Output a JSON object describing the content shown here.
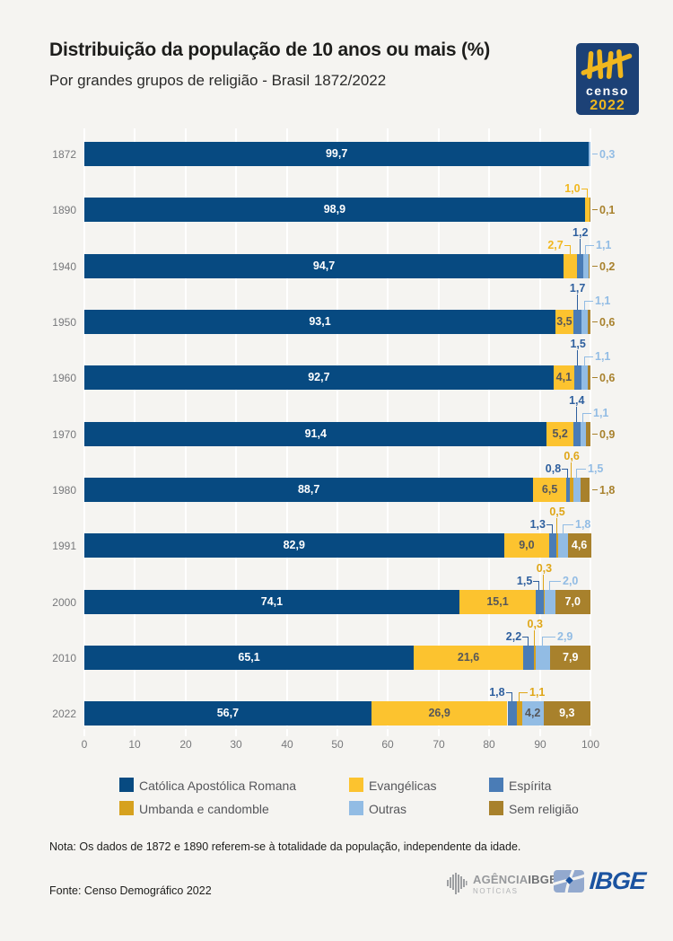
{
  "header": {
    "title": "Distribuição da população de 10 anos ou mais (%)",
    "subtitle": "Por grandes grupos de religião  - Brasil 1872/2022",
    "censo_logo": {
      "line1": "censo",
      "line2": "2022"
    }
  },
  "chart_data": {
    "type": "bar",
    "stacked": true,
    "orientation": "horizontal",
    "unit": "%",
    "decimal_separator": ",",
    "categories": [
      "1872",
      "1890",
      "1940",
      "1950",
      "1960",
      "1970",
      "1980",
      "1991",
      "2000",
      "2010",
      "2022"
    ],
    "series": [
      {
        "name": "Católica Apostólica Romana",
        "color": "#074a81",
        "values": [
          99.7,
          98.9,
          94.7,
          93.1,
          92.7,
          91.4,
          88.7,
          82.9,
          74.1,
          65.1,
          56.7
        ]
      },
      {
        "name": "Evangélicas",
        "color": "#fcc32f",
        "values": [
          null,
          1.0,
          2.7,
          3.5,
          4.1,
          5.2,
          6.5,
          9.0,
          15.1,
          21.6,
          26.9
        ]
      },
      {
        "name": "Espírita",
        "color": "#4a7cb6",
        "values": [
          null,
          null,
          1.2,
          1.7,
          1.5,
          1.4,
          0.8,
          1.3,
          1.5,
          2.2,
          1.8
        ]
      },
      {
        "name": "Umbanda e candomble",
        "color": "#d6a11e",
        "values": [
          null,
          null,
          null,
          null,
          null,
          null,
          0.6,
          0.5,
          0.3,
          0.3,
          1.1
        ]
      },
      {
        "name": "Outras",
        "color": "#92bce4",
        "values": [
          0.3,
          null,
          1.1,
          1.1,
          1.1,
          1.1,
          1.5,
          1.8,
          2.0,
          2.9,
          4.2
        ]
      },
      {
        "name": "Sem religião",
        "color": "#a8812c",
        "values": [
          null,
          0.1,
          0.2,
          0.6,
          0.6,
          0.9,
          1.8,
          4.6,
          7.0,
          7.9,
          9.3
        ]
      }
    ],
    "xlim": [
      0,
      100
    ],
    "xticks": [
      0,
      10,
      20,
      30,
      40,
      50,
      60,
      70,
      80,
      90,
      100
    ],
    "grid": "vertical-white-gridlines",
    "legend_position": "bottom"
  },
  "note": {
    "text": "Nota: Os dados de 1872 e 1890 referem-se à totalidade da população, independente da idade."
  },
  "source": {
    "text": "Fonte: Censo Demográfico 2022"
  },
  "footer_logos": {
    "agencia": {
      "word1": "AGÊNCIA",
      "word2": "IBGE",
      "line2": "NOTÍCIAS"
    },
    "ibge": {
      "text": "IBGE"
    }
  }
}
